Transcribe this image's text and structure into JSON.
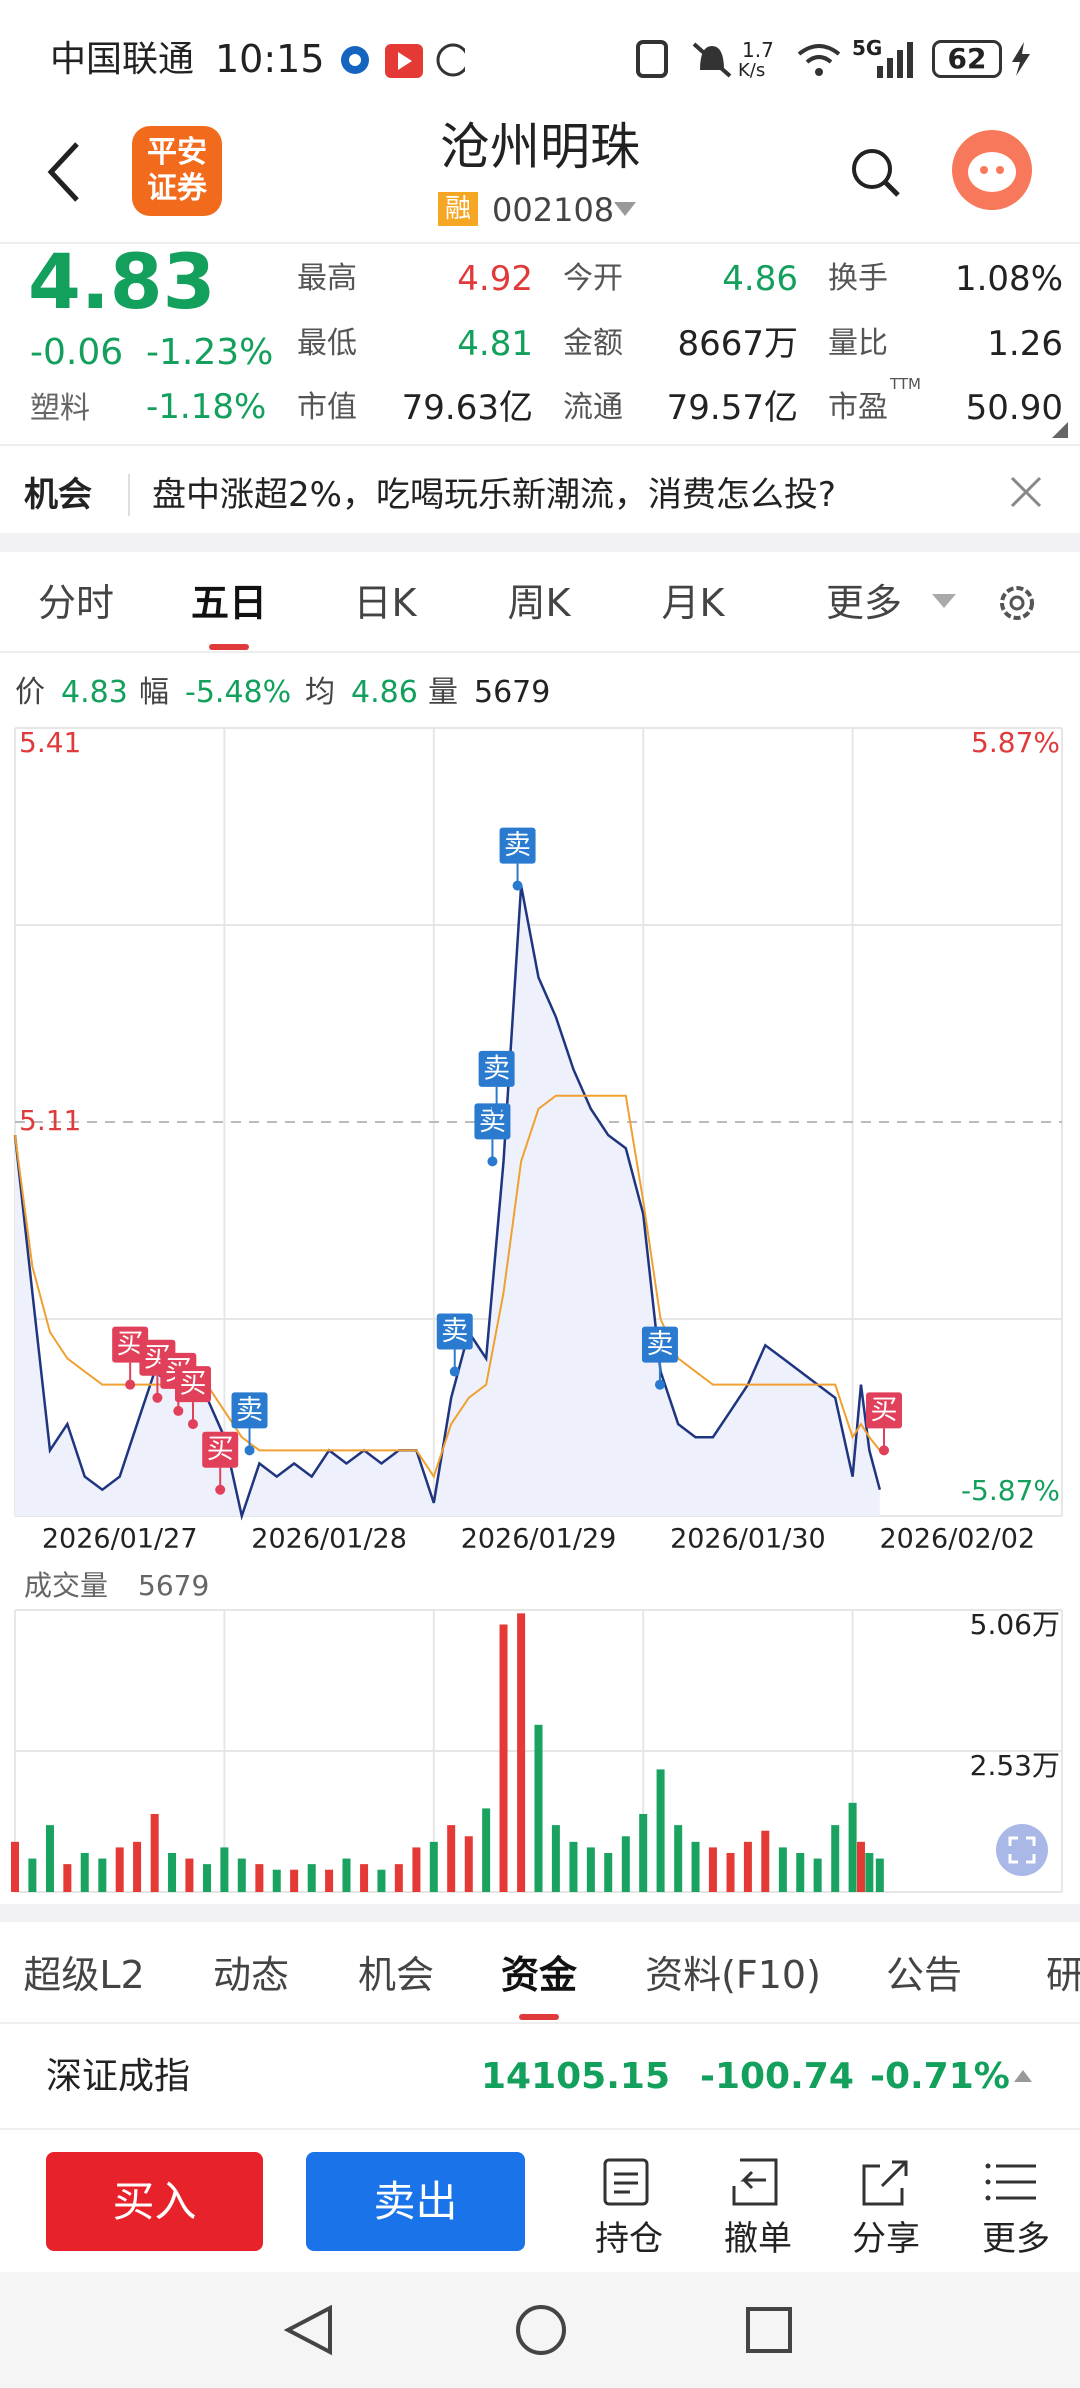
{
  "status": {
    "carrier": "中国联通",
    "time": "10:15",
    "speed": "1.7",
    "speed_unit": "K/s",
    "network": "5G",
    "battery": "62"
  },
  "header": {
    "broker": [
      "平安",
      "证券"
    ],
    "title": "沧州明珠",
    "badge": "融",
    "code": "002108"
  },
  "quote": {
    "price": "4.83",
    "change": "-0.06",
    "change_pct": "-1.23%",
    "sector": "塑料",
    "sector_pct": "-1.18%",
    "stats": [
      [
        {
          "label": "最高",
          "value": "4.92",
          "color": "#e03b3b"
        },
        {
          "label": "今开",
          "value": "4.86",
          "color": "#12a05c"
        },
        {
          "label": "换手",
          "value": "1.08%",
          "color": "#222222"
        }
      ],
      [
        {
          "label": "最低",
          "value": "4.81",
          "color": "#12a05c"
        },
        {
          "label": "金额",
          "value": "8667万",
          "color": "#222222"
        },
        {
          "label": "量比",
          "value": "1.26",
          "color": "#222222"
        }
      ],
      [
        {
          "label": "市值",
          "value": "79.63亿",
          "color": "#222222"
        },
        {
          "label": "流通",
          "value": "79.57亿",
          "color": "#222222"
        },
        {
          "label": "市盈",
          "sup": "TTM",
          "value": "50.90",
          "color": "#222222"
        }
      ]
    ]
  },
  "banner": {
    "tag": "机会",
    "text": "盘中涨超2%，吃喝玩乐新潮流，消费怎么投?"
  },
  "tabs": [
    "分时",
    "五日",
    "日K",
    "周K",
    "月K",
    "更多"
  ],
  "info": [
    {
      "label": "价",
      "value": "4.83",
      "color": "#12a05c"
    },
    {
      "label": "幅",
      "value": "-5.48%",
      "color": "#12a05c"
    },
    {
      "label": "均",
      "value": "4.86",
      "color": "#12a05c"
    },
    {
      "label": "量",
      "value": "5679",
      "color": "#222222"
    }
  ],
  "chart_data": [
    {
      "type": "line",
      "xlim": [
        0,
        5
      ],
      "ylim": [
        4.81,
        5.41
      ],
      "yticks": [
        4.81,
        5.11,
        5.41
      ],
      "y2lim": [
        -5.87,
        5.87
      ],
      "y2ticks": [
        {
          "value": 5.87,
          "label": "5.87%"
        },
        {
          "value": -5.87,
          "label": "-5.87%"
        }
      ],
      "xticks": [
        {
          "value": 0.5,
          "label": "2026/01/27"
        },
        {
          "value": 1.5,
          "label": "2026/01/28"
        },
        {
          "value": 2.5,
          "label": "2026/01/29"
        },
        {
          "value": 3.5,
          "label": "2026/01/30"
        },
        {
          "value": 4.5,
          "label": "2026/02/02"
        }
      ],
      "x": [
        0,
        0.083,
        0.167,
        0.25,
        0.333,
        0.417,
        0.5,
        0.583,
        0.667,
        0.75,
        0.833,
        0.917,
        1,
        1.083,
        1.167,
        1.25,
        1.333,
        1.417,
        1.5,
        1.583,
        1.667,
        1.75,
        1.833,
        1.917,
        2,
        2.083,
        2.167,
        2.25,
        2.333,
        2.417,
        2.5,
        2.583,
        2.667,
        2.75,
        2.833,
        2.917,
        3,
        3.083,
        3.167,
        3.25,
        3.333,
        3.417,
        3.5,
        3.583,
        3.667,
        3.75,
        3.833,
        3.917,
        4,
        4.04,
        4.08,
        4.13
      ],
      "series": [
        {
          "color": "#1f3580",
          "values": [
            5.1,
            4.98,
            4.86,
            4.88,
            4.84,
            4.83,
            4.84,
            4.88,
            4.92,
            4.91,
            4.92,
            4.9,
            4.87,
            4.81,
            4.85,
            4.84,
            4.85,
            4.84,
            4.86,
            4.85,
            4.86,
            4.85,
            4.86,
            4.86,
            4.82,
            4.9,
            4.95,
            4.93,
            5.08,
            5.29,
            5.22,
            5.19,
            5.15,
            5.12,
            5.1,
            5.09,
            5.04,
            4.92,
            4.88,
            4.87,
            4.87,
            4.89,
            4.91,
            4.94,
            4.93,
            4.92,
            4.91,
            4.9,
            4.84,
            4.91,
            4.86,
            4.83
          ]
        },
        {
          "color": "#f0a030",
          "values": [
            5.1,
            5.0,
            4.95,
            4.93,
            4.92,
            4.91,
            4.91,
            4.91,
            4.91,
            4.91,
            4.91,
            4.91,
            4.89,
            4.87,
            4.86,
            4.86,
            4.86,
            4.86,
            4.86,
            4.86,
            4.86,
            4.86,
            4.86,
            4.86,
            4.84,
            4.88,
            4.9,
            4.91,
            4.98,
            5.08,
            5.12,
            5.13,
            5.13,
            5.13,
            5.13,
            5.13,
            5.05,
            4.96,
            4.93,
            4.92,
            4.91,
            4.91,
            4.91,
            4.91,
            4.91,
            4.91,
            4.91,
            4.91,
            4.87,
            4.88,
            4.87,
            4.86
          ]
        }
      ],
      "markers": [
        {
          "label": "买",
          "x": 0.55,
          "y": 4.91
        },
        {
          "label": "买",
          "x": 0.68,
          "y": 4.9
        },
        {
          "label": "买",
          "x": 0.78,
          "y": 4.89
        },
        {
          "label": "买",
          "x": 0.85,
          "y": 4.88
        },
        {
          "label": "买",
          "x": 0.98,
          "y": 4.83
        },
        {
          "label": "卖",
          "x": 1.12,
          "y": 4.86
        },
        {
          "label": "卖",
          "x": 2.1,
          "y": 4.92
        },
        {
          "label": "卖",
          "x": 2.28,
          "y": 5.08
        },
        {
          "label": "卖",
          "x": 2.3,
          "y": 5.12
        },
        {
          "label": "卖",
          "x": 2.4,
          "y": 5.29
        },
        {
          "label": "卖",
          "x": 3.08,
          "y": 4.91
        },
        {
          "label": "买",
          "x": 4.15,
          "y": 4.86
        }
      ]
    },
    {
      "type": "bar",
      "title": "成交量",
      "value_label": "5679",
      "xlim": [
        0,
        5
      ],
      "ylim": [
        0,
        50600
      ],
      "yticks": [
        {
          "value": 50600,
          "label": "5.06万"
        },
        {
          "value": 25300,
          "label": "2.53万"
        }
      ],
      "x": [
        0,
        0.083,
        0.167,
        0.25,
        0.333,
        0.417,
        0.5,
        0.583,
        0.667,
        0.75,
        0.833,
        0.917,
        1,
        1.083,
        1.167,
        1.25,
        1.333,
        1.417,
        1.5,
        1.583,
        1.667,
        1.75,
        1.833,
        1.917,
        2,
        2.083,
        2.167,
        2.25,
        2.333,
        2.417,
        2.5,
        2.583,
        2.667,
        2.75,
        2.833,
        2.917,
        3,
        3.083,
        3.167,
        3.25,
        3.333,
        3.417,
        3.5,
        3.583,
        3.667,
        3.75,
        3.833,
        3.917,
        4,
        4.04,
        4.08,
        4.13
      ],
      "values": [
        9000,
        6000,
        12000,
        5000,
        7000,
        6000,
        8000,
        9000,
        14000,
        7000,
        6000,
        5000,
        8000,
        6000,
        5000,
        4000,
        4000,
        5000,
        4000,
        6000,
        5000,
        4000,
        5000,
        8000,
        9000,
        12000,
        10000,
        15000,
        48000,
        50000,
        30000,
        12000,
        9000,
        8000,
        7000,
        10000,
        14000,
        22000,
        12000,
        9000,
        8000,
        7000,
        9000,
        11000,
        8000,
        7000,
        6000,
        12000,
        16000,
        9000,
        7000,
        6000
      ],
      "colors": [
        "#e53935",
        "#1aa260",
        "#1aa260",
        "#e53935",
        "#1aa260",
        "#1aa260",
        "#e53935",
        "#e53935",
        "#e53935",
        "#1aa260",
        "#e53935",
        "#1aa260",
        "#1aa260",
        "#1aa260",
        "#e53935",
        "#1aa260",
        "#e53935",
        "#1aa260",
        "#e53935",
        "#1aa260",
        "#e53935",
        "#1aa260",
        "#e53935",
        "#e53935",
        "#1aa260",
        "#e53935",
        "#e53935",
        "#1aa260",
        "#e53935",
        "#e53935",
        "#1aa260",
        "#1aa260",
        "#1aa260",
        "#1aa260",
        "#1aa260",
        "#1aa260",
        "#1aa260",
        "#1aa260",
        "#1aa260",
        "#1aa260",
        "#e53935",
        "#e53935",
        "#e53935",
        "#e53935",
        "#1aa260",
        "#1aa260",
        "#1aa260",
        "#1aa260",
        "#1aa260",
        "#e53935",
        "#1aa260",
        "#1aa260"
      ]
    }
  ],
  "bottom_tabs": [
    "超级L2",
    "动态",
    "机会",
    "资金",
    "资料(F10)",
    "公告",
    "研"
  ],
  "index": {
    "name": "深证成指",
    "value": "14105.15",
    "change": "-100.74",
    "change_pct": "-0.71%"
  },
  "actions": {
    "buy": "买入",
    "sell": "卖出",
    "items": [
      "持仓",
      "撤单",
      "分享",
      "更多"
    ]
  }
}
